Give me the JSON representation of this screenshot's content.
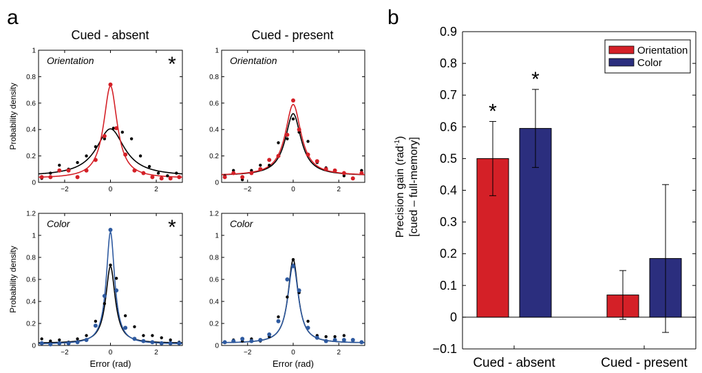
{
  "panel_letters": [
    "a",
    "b"
  ],
  "colors": {
    "orientation": "#d42027",
    "color": "#2e5aa0",
    "full_memory": "#000000",
    "bar_color": "#2b2e7e"
  },
  "chart_data": [
    {
      "type": "scatter",
      "panel": "a",
      "column_title": "Cued - absent",
      "title": "Orientation",
      "ylabel": "Probability density",
      "xlabel": "",
      "significant": true,
      "significance_mark": "*",
      "xlim": [
        -3.14,
        3.14
      ],
      "ylim": [
        0,
        1
      ],
      "xticks": [
        -2,
        0,
        2
      ],
      "yticks": [
        0,
        0.2,
        0.4,
        0.6,
        0.8,
        1
      ],
      "ytick_labels": [
        "0",
        "0.2",
        "0.4",
        "0.6",
        "0.8",
        "1"
      ],
      "series": [
        {
          "key": "full_memory",
          "color": "#000000",
          "x": [
            -3.0,
            -2.62,
            -2.23,
            -1.83,
            -1.44,
            -1.05,
            -0.65,
            -0.26,
            0.13,
            0.52,
            0.92,
            1.31,
            1.7,
            2.09,
            2.49,
            2.88
          ],
          "y": [
            0.03,
            0.07,
            0.13,
            0.1,
            0.15,
            0.2,
            0.27,
            0.33,
            0.41,
            0.38,
            0.33,
            0.2,
            0.12,
            0.07,
            0.05,
            0.07
          ],
          "fit": {
            "amp": 0.36,
            "width": 0.75,
            "base": 0.045
          }
        },
        {
          "key": "orientation",
          "color": "#d42027",
          "x": [
            -3.0,
            -2.62,
            -2.23,
            -1.83,
            -1.44,
            -1.05,
            -0.65,
            -0.26,
            0.0,
            0.26,
            0.65,
            1.05,
            1.44,
            1.83,
            2.23,
            2.62,
            3.0
          ],
          "y": [
            0.04,
            0.04,
            0.09,
            0.09,
            0.04,
            0.09,
            0.17,
            0.35,
            0.74,
            0.41,
            0.21,
            0.09,
            0.07,
            0.04,
            0.03,
            0.03,
            0.04
          ],
          "fit": {
            "amp": 0.7,
            "width": 0.36,
            "base": 0.03
          }
        }
      ]
    },
    {
      "type": "scatter",
      "panel": "a",
      "column_title": "Cued - present",
      "title": "Orientation",
      "ylabel": "",
      "xlabel": "",
      "significant": false,
      "xlim": [
        -3.14,
        3.14
      ],
      "ylim": [
        0,
        1
      ],
      "xticks": [
        -2,
        0,
        2
      ],
      "yticks": [
        0,
        0.2,
        0.4,
        0.6,
        0.8,
        1
      ],
      "ytick_labels": [
        "0",
        "0.2",
        "0.4",
        "0.6",
        "0.8",
        "1"
      ],
      "series": [
        {
          "key": "full_memory",
          "color": "#000000",
          "x": [
            -3.0,
            -2.62,
            -2.23,
            -1.83,
            -1.44,
            -1.05,
            -0.65,
            -0.26,
            0.0,
            0.26,
            0.65,
            1.05,
            1.44,
            1.83,
            2.23,
            2.62,
            3.0
          ],
          "y": [
            0.05,
            0.09,
            0.02,
            0.09,
            0.13,
            0.13,
            0.3,
            0.33,
            0.48,
            0.38,
            0.31,
            0.15,
            0.11,
            0.09,
            0.05,
            0.03,
            0.09
          ],
          "fit": {
            "amp": 0.47,
            "width": 0.42,
            "base": 0.05
          }
        },
        {
          "key": "orientation",
          "color": "#d42027",
          "x": [
            -3.0,
            -2.62,
            -2.23,
            -1.83,
            -1.44,
            -1.05,
            -0.65,
            -0.26,
            0.0,
            0.26,
            0.65,
            1.05,
            1.44,
            1.83,
            2.23,
            2.62,
            3.0
          ],
          "y": [
            0.04,
            0.07,
            0.04,
            0.07,
            0.1,
            0.17,
            0.2,
            0.36,
            0.62,
            0.4,
            0.21,
            0.16,
            0.1,
            0.09,
            0.07,
            0.03,
            0.07
          ],
          "fit": {
            "amp": 0.54,
            "width": 0.42,
            "base": 0.05
          }
        }
      ]
    },
    {
      "type": "scatter",
      "panel": "a",
      "column_title": "",
      "title": "Color",
      "ylabel": "Probability density",
      "xlabel": "Error (rad)",
      "significant": true,
      "significance_mark": "*",
      "xlim": [
        -3.14,
        3.14
      ],
      "ylim": [
        0,
        1.2
      ],
      "xticks": [
        -2,
        0,
        2
      ],
      "yticks": [
        0,
        0.2,
        0.4,
        0.6,
        0.8,
        1,
        1.2
      ],
      "ytick_labels": [
        "0",
        "0.2",
        "0.4",
        "0.6",
        "0.8",
        "1",
        "1.2"
      ],
      "series": [
        {
          "key": "full_memory",
          "color": "#000000",
          "x": [
            -3.0,
            -2.62,
            -2.23,
            -1.83,
            -1.44,
            -1.05,
            -0.65,
            -0.26,
            0.0,
            0.26,
            0.65,
            1.05,
            1.44,
            1.83,
            2.23,
            2.62,
            3.0
          ],
          "y": [
            0.06,
            0.04,
            0.05,
            0.03,
            0.06,
            0.09,
            0.22,
            0.38,
            0.73,
            0.61,
            0.27,
            0.17,
            0.09,
            0.09,
            0.07,
            0.05,
            0.03
          ],
          "fit": {
            "amp": 0.7,
            "width": 0.25,
            "base": 0.02
          }
        },
        {
          "key": "color",
          "color": "#2e5aa0",
          "x": [
            -3.0,
            -2.62,
            -2.23,
            -1.83,
            -1.44,
            -1.05,
            -0.65,
            -0.26,
            0.0,
            0.26,
            0.65,
            1.05,
            1.44,
            1.83,
            2.23,
            2.62,
            3.0
          ],
          "y": [
            0.02,
            0.01,
            0.02,
            0.02,
            0.03,
            0.05,
            0.18,
            0.45,
            1.05,
            0.5,
            0.16,
            0.06,
            0.04,
            0.03,
            0.02,
            0.02,
            0.02
          ],
          "fit": {
            "amp": 1.02,
            "width": 0.22,
            "base": 0.012
          }
        }
      ]
    },
    {
      "type": "scatter",
      "panel": "a",
      "column_title": "",
      "title": "Color",
      "ylabel": "",
      "xlabel": "Error (rad)",
      "significant": false,
      "xlim": [
        -3.14,
        3.14
      ],
      "ylim": [
        0,
        1.2
      ],
      "xticks": [
        -2,
        0,
        2
      ],
      "yticks": [
        0,
        0.2,
        0.4,
        0.6,
        0.8,
        1,
        1.2
      ],
      "ytick_labels": [
        "0",
        "0.2",
        "0.4",
        "0.6",
        "0.8",
        "1",
        "1.2"
      ],
      "series": [
        {
          "key": "full_memory",
          "color": "#000000",
          "x": [
            -3.0,
            -2.62,
            -2.23,
            -1.83,
            -1.44,
            -1.05,
            -0.65,
            -0.26,
            0.0,
            0.26,
            0.65,
            1.05,
            1.44,
            1.83,
            2.23,
            2.62,
            3.0
          ],
          "y": [
            0.03,
            0.05,
            0.04,
            0.06,
            0.04,
            0.08,
            0.26,
            0.44,
            0.78,
            0.48,
            0.22,
            0.09,
            0.08,
            0.08,
            0.09,
            0.05,
            0.03
          ],
          "fit": {
            "amp": 0.76,
            "width": 0.27,
            "base": 0.02
          }
        },
        {
          "key": "color",
          "color": "#2e5aa0",
          "x": [
            -3.0,
            -2.62,
            -2.23,
            -1.83,
            -1.44,
            -1.05,
            -0.65,
            -0.26,
            0.0,
            0.26,
            0.65,
            1.05,
            1.44,
            1.83,
            2.23,
            2.62,
            3.0
          ],
          "y": [
            0.03,
            0.04,
            0.06,
            0.04,
            0.05,
            0.1,
            0.22,
            0.6,
            0.72,
            0.5,
            0.16,
            0.07,
            0.04,
            0.05,
            0.05,
            0.05,
            0.03
          ],
          "fit": {
            "amp": 0.72,
            "width": 0.28,
            "base": 0.02
          }
        }
      ]
    },
    {
      "type": "bar",
      "panel": "b",
      "categories": [
        "Cued - absent",
        "Cued - present"
      ],
      "ylabel_line1": "Precision gain (rad",
      "ylabel_sup": "-1",
      "ylabel_line1_end": ")",
      "ylabel_line2": "[cued – full-memory]",
      "ylim": [
        -0.1,
        0.9
      ],
      "yticks": [
        -0.1,
        0,
        0.1,
        0.2,
        0.3,
        0.4,
        0.5,
        0.6,
        0.7,
        0.8,
        0.9
      ],
      "ytick_labels": [
        "−0.1",
        "0",
        "0.1",
        "0.2",
        "0.3",
        "0.4",
        "0.5",
        "0.6",
        "0.7",
        "0.8",
        "0.9"
      ],
      "legend": [
        "Orientation",
        "Color"
      ],
      "legend_position": "top-right",
      "series": [
        {
          "name": "Orientation",
          "color": "#d42027",
          "values": [
            0.5,
            0.07
          ],
          "error": [
            0.117,
            0.077
          ],
          "significant": [
            true,
            false
          ]
        },
        {
          "name": "Color",
          "color": "#2b2e7e",
          "values": [
            0.595,
            0.185
          ],
          "error": [
            0.123,
            0.233
          ],
          "significant": [
            true,
            false
          ]
        }
      ],
      "significance_mark": "*"
    }
  ]
}
